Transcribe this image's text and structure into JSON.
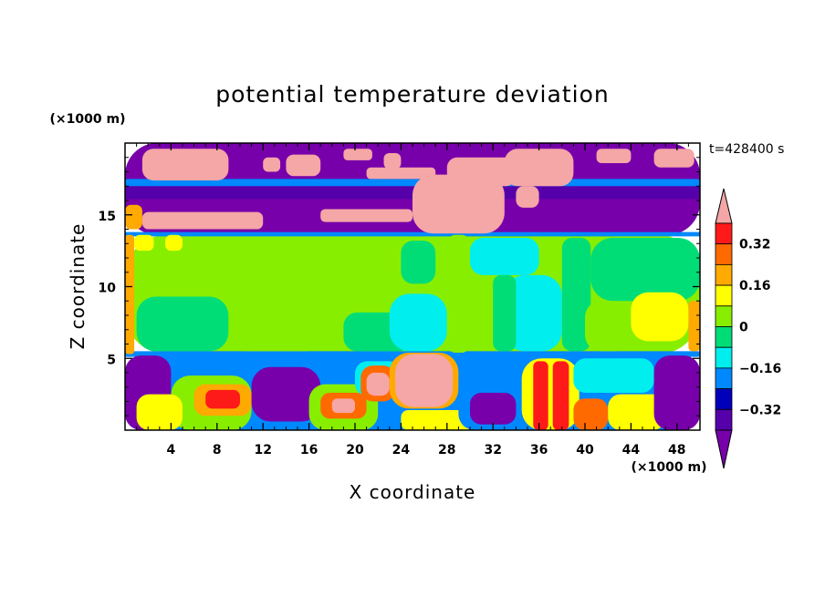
{
  "chart_data": {
    "type": "heatmap",
    "title": "potential temperature deviation",
    "xlabel": "X coordinate",
    "ylabel": "Z coordinate",
    "x_unit": "(×1000 m)",
    "y_unit": "(×1000 m)",
    "time_label": "t=428400 s",
    "xlim": [
      0,
      50
    ],
    "ylim": [
      0,
      20
    ],
    "x_ticks": [
      4,
      8,
      12,
      16,
      20,
      24,
      28,
      32,
      36,
      40,
      44,
      48
    ],
    "y_ticks": [
      5,
      10,
      15
    ],
    "colorbar": {
      "tick_values": [
        0.32,
        0.16,
        0,
        -0.16,
        -0.32
      ],
      "tick_labels": [
        "0.32",
        "0.16",
        "0",
        "−0.16",
        "−0.32"
      ],
      "levels": [
        {
          "upper": "max",
          "lower": 0.4,
          "color": "#f5a6a6"
        },
        {
          "upper": 0.4,
          "lower": 0.32,
          "color": "#ff1a1a"
        },
        {
          "upper": 0.32,
          "lower": 0.24,
          "color": "#ff6a00"
        },
        {
          "upper": 0.24,
          "lower": 0.16,
          "color": "#ffaa00"
        },
        {
          "upper": 0.16,
          "lower": 0.08,
          "color": "#ffff00"
        },
        {
          "upper": 0.08,
          "lower": 0.0,
          "color": "#88ee00"
        },
        {
          "upper": 0.0,
          "lower": -0.08,
          "color": "#00dd77"
        },
        {
          "upper": -0.08,
          "lower": -0.16,
          "color": "#00eeee"
        },
        {
          "upper": -0.16,
          "lower": -0.24,
          "color": "#0088ff"
        },
        {
          "upper": -0.24,
          "lower": -0.32,
          "color": "#0000bb"
        },
        {
          "upper": -0.32,
          "lower": -0.4,
          "color": "#5500aa"
        },
        {
          "upper": -0.4,
          "lower": "min",
          "color": "#7700aa"
        }
      ]
    },
    "regions": [
      {
        "x": [
          0,
          50
        ],
        "y": [
          0,
          5.3
        ],
        "value": -0.2
      },
      {
        "x": [
          0,
          50
        ],
        "y": [
          5.3,
          13.6
        ],
        "value": 0.04
      },
      {
        "x": [
          0,
          50
        ],
        "y": [
          13.6,
          20
        ],
        "value": -0.45
      },
      {
        "x": [
          0,
          50
        ],
        "y": [
          16.6,
          17.0
        ],
        "value": -0.35
      },
      {
        "x": [
          0,
          50
        ],
        "y": [
          17.0,
          17.5
        ],
        "value": -0.2
      },
      {
        "x": [
          0,
          50
        ],
        "y": [
          16.1,
          16.6
        ],
        "value": -0.35
      },
      {
        "x": [
          0,
          50
        ],
        "y": [
          13.5,
          13.8
        ],
        "value": -0.2
      },
      {
        "x": [
          0,
          50
        ],
        "y": [
          5.1,
          5.5
        ],
        "value": -0.2
      },
      {
        "x": [
          0,
          4
        ],
        "y": [
          0,
          5.2
        ],
        "value": -0.45
      },
      {
        "x": [
          4,
          11
        ],
        "y": [
          0,
          3.8
        ],
        "value": 0.0
      },
      {
        "x": [
          1,
          5
        ],
        "y": [
          0,
          2.5
        ],
        "value": 0.1
      },
      {
        "x": [
          6,
          11
        ],
        "y": [
          1.0,
          3.2
        ],
        "value": 0.2
      },
      {
        "x": [
          7,
          10
        ],
        "y": [
          1.5,
          2.8
        ],
        "value": 0.35
      },
      {
        "x": [
          11,
          17
        ],
        "y": [
          0.6,
          4.4
        ],
        "value": -0.45
      },
      {
        "x": [
          16,
          22
        ],
        "y": [
          0,
          3.2
        ],
        "value": 0.0
      },
      {
        "x": [
          17,
          21
        ],
        "y": [
          0.8,
          2.6
        ],
        "value": 0.25
      },
      {
        "x": [
          18,
          20
        ],
        "y": [
          1.2,
          2.2
        ],
        "value": 0.45
      },
      {
        "x": [
          20,
          24
        ],
        "y": [
          2.4,
          4.8
        ],
        "value": -0.1
      },
      {
        "x": [
          20.5,
          23.5
        ],
        "y": [
          2.0,
          4.5
        ],
        "value": 0.3
      },
      {
        "x": [
          21,
          23
        ],
        "y": [
          2.4,
          4.0
        ],
        "value": 0.45
      },
      {
        "x": [
          23,
          29
        ],
        "y": [
          1.5,
          5.4
        ],
        "value": 0.2
      },
      {
        "x": [
          23.5,
          28.5
        ],
        "y": [
          1.6,
          5.3
        ],
        "value": 0.45
      },
      {
        "x": [
          24,
          31
        ],
        "y": [
          0,
          1.4
        ],
        "value": 0.1
      },
      {
        "x": [
          29,
          33
        ],
        "y": [
          0,
          4.8
        ],
        "value": -0.2
      },
      {
        "x": [
          30,
          34
        ],
        "y": [
          0.4,
          2.6
        ],
        "value": -0.45
      },
      {
        "x": [
          34.5,
          39.5
        ],
        "y": [
          0,
          5.0
        ],
        "value": 0.12
      },
      {
        "x": [
          35.5,
          36.8
        ],
        "y": [
          0,
          4.8
        ],
        "value": 0.35
      },
      {
        "x": [
          37.2,
          38.6
        ],
        "y": [
          0,
          4.8
        ],
        "value": 0.35
      },
      {
        "x": [
          39,
          46
        ],
        "y": [
          2.6,
          5.0
        ],
        "value": -0.12
      },
      {
        "x": [
          39,
          42
        ],
        "y": [
          0,
          2.2
        ],
        "value": 0.3
      },
      {
        "x": [
          42,
          47
        ],
        "y": [
          0,
          2.5
        ],
        "value": 0.1
      },
      {
        "x": [
          46,
          50
        ],
        "y": [
          0,
          5.2
        ],
        "value": -0.45
      },
      {
        "x": [
          0,
          0.8
        ],
        "y": [
          5.3,
          13.6
        ],
        "value": 0.2
      },
      {
        "x": [
          0.8,
          2.5
        ],
        "y": [
          12.5,
          13.6
        ],
        "value": 0.12
      },
      {
        "x": [
          3.5,
          5.0
        ],
        "y": [
          12.5,
          13.6
        ],
        "value": 0.12
      },
      {
        "x": [
          1,
          9
        ],
        "y": [
          5.5,
          9.3
        ],
        "value": -0.03
      },
      {
        "x": [
          9,
          17
        ],
        "y": [
          5.5,
          8.6
        ],
        "value": 0.04
      },
      {
        "x": [
          11,
          17
        ],
        "y": [
          9.2,
          13.2
        ],
        "value": 0.04
      },
      {
        "x": [
          17,
          23
        ],
        "y": [
          6.0,
          10.0
        ],
        "value": 0.04
      },
      {
        "x": [
          19,
          25
        ],
        "y": [
          5.5,
          8.2
        ],
        "value": -0.03
      },
      {
        "x": [
          23,
          28
        ],
        "y": [
          5.5,
          9.5
        ],
        "value": -0.1
      },
      {
        "x": [
          24,
          27
        ],
        "y": [
          10.2,
          13.2
        ],
        "value": -0.03
      },
      {
        "x": [
          28,
          30
        ],
        "y": [
          5.4,
          13.6
        ],
        "value": 0.04
      },
      {
        "x": [
          30,
          36
        ],
        "y": [
          10.8,
          13.4
        ],
        "value": -0.1
      },
      {
        "x": [
          33,
          38
        ],
        "y": [
          5.5,
          10.8
        ],
        "value": -0.1
      },
      {
        "x": [
          32,
          34
        ],
        "y": [
          5.5,
          10.8
        ],
        "value": -0.03
      },
      {
        "x": [
          38,
          40.5
        ],
        "y": [
          5.5,
          13.4
        ],
        "value": -0.03
      },
      {
        "x": [
          40.5,
          50
        ],
        "y": [
          9.0,
          13.4
        ],
        "value": -0.03
      },
      {
        "x": [
          40,
          44
        ],
        "y": [
          5.5,
          9.0
        ],
        "value": 0.04
      },
      {
        "x": [
          44,
          49
        ],
        "y": [
          6.2,
          9.6
        ],
        "value": 0.12
      },
      {
        "x": [
          49,
          50
        ],
        "y": [
          5.5,
          9.0
        ],
        "value": 0.2
      },
      {
        "x": [
          0,
          1.5
        ],
        "y": [
          14.0,
          15.7
        ],
        "value": 0.2
      },
      {
        "x": [
          1.5,
          12
        ],
        "y": [
          14.0,
          15.2
        ],
        "value": 0.45
      },
      {
        "x": [
          17,
          25
        ],
        "y": [
          14.5,
          15.4
        ],
        "value": 0.45
      },
      {
        "x": [
          25,
          33
        ],
        "y": [
          13.7,
          17.8
        ],
        "value": 0.45
      },
      {
        "x": [
          33,
          39
        ],
        "y": [
          17.0,
          19.6
        ],
        "value": 0.45
      },
      {
        "x": [
          28,
          34
        ],
        "y": [
          17.0,
          19.0
        ],
        "value": 0.45
      },
      {
        "x": [
          34,
          36
        ],
        "y": [
          15.5,
          17.0
        ],
        "value": 0.45
      },
      {
        "x": [
          1.5,
          9
        ],
        "y": [
          17.4,
          19.6
        ],
        "value": 0.45
      },
      {
        "x": [
          12,
          13.5
        ],
        "y": [
          18.0,
          19.0
        ],
        "value": 0.45
      },
      {
        "x": [
          14,
          17
        ],
        "y": [
          17.7,
          19.2
        ],
        "value": 0.45
      },
      {
        "x": [
          19,
          21.5
        ],
        "y": [
          18.8,
          19.6
        ],
        "value": 0.45
      },
      {
        "x": [
          22.5,
          24
        ],
        "y": [
          18.2,
          19.3
        ],
        "value": 0.45
      },
      {
        "x": [
          41,
          44
        ],
        "y": [
          18.6,
          19.6
        ],
        "value": 0.45
      },
      {
        "x": [
          46,
          49.5
        ],
        "y": [
          18.3,
          19.6
        ],
        "value": 0.45
      },
      {
        "x": [
          21,
          27
        ],
        "y": [
          17.5,
          18.3
        ],
        "value": 0.45
      }
    ]
  }
}
